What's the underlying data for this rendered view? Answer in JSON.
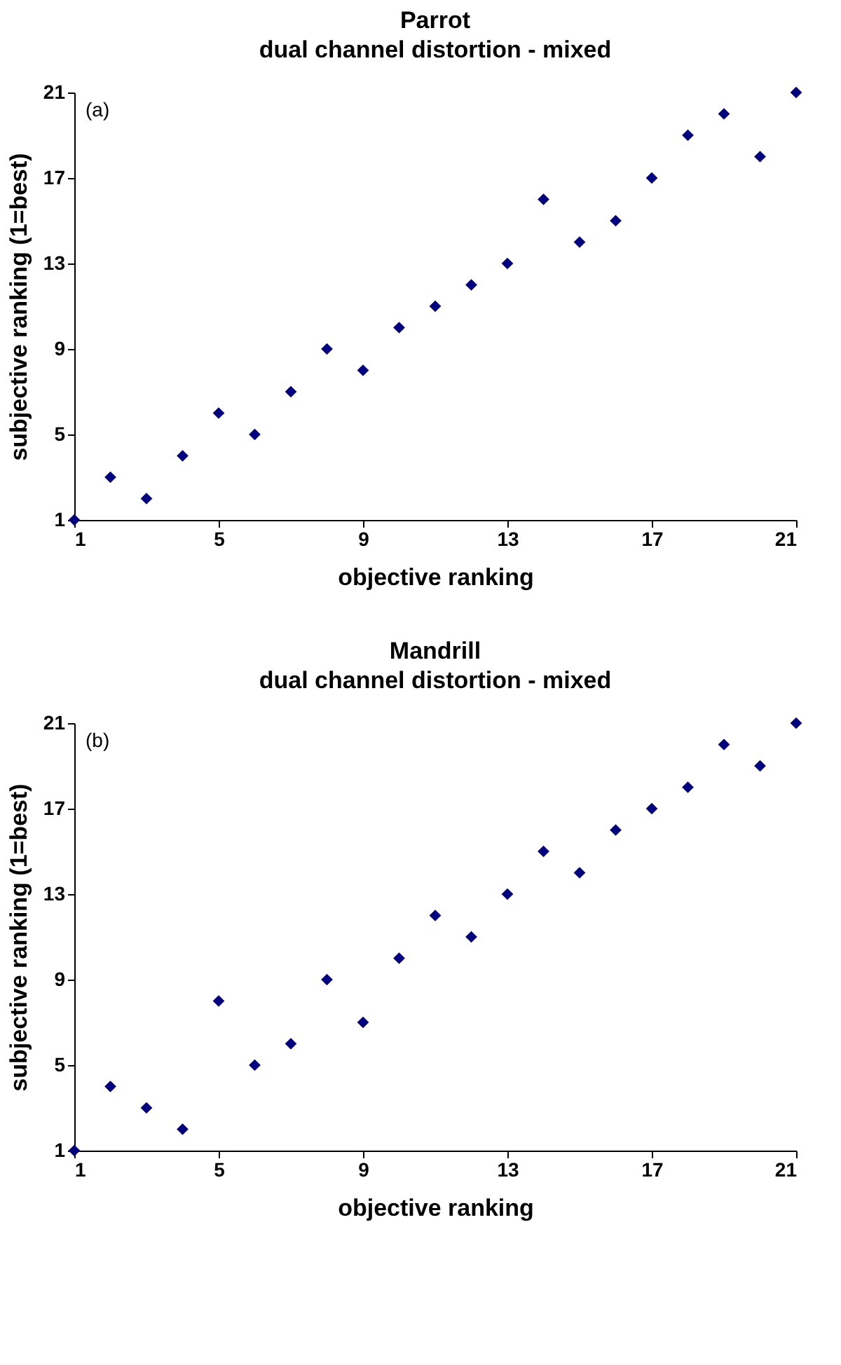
{
  "chart_data": [
    {
      "type": "scatter",
      "title": "Parrot",
      "subtitle": "dual channel distortion - mixed",
      "xlabel": "objective ranking",
      "ylabel": "subjective ranking (1=best)",
      "annotations": [
        "(a)"
      ],
      "marker": "diamond",
      "xlim": [
        1,
        21
      ],
      "ylim": [
        1,
        21
      ],
      "xticks": [
        1,
        5,
        9,
        13,
        17,
        21
      ],
      "yticks": [
        1,
        5,
        9,
        13,
        17,
        21
      ],
      "x": [
        1,
        2,
        3,
        4,
        5,
        6,
        7,
        8,
        9,
        10,
        11,
        12,
        13,
        14,
        15,
        16,
        17,
        18,
        19,
        20,
        21
      ],
      "series": [
        {
          "color": "#000080",
          "values": [
            1,
            3,
            2,
            4,
            6,
            5,
            7,
            9,
            8,
            10,
            11,
            12,
            13,
            16,
            14,
            15,
            17,
            19,
            20,
            18,
            21
          ]
        }
      ]
    },
    {
      "type": "scatter",
      "title": "Mandrill",
      "subtitle": "dual channel distortion - mixed",
      "xlabel": "objective ranking",
      "ylabel": "subjective ranking (1=best)",
      "annotations": [
        "(b)"
      ],
      "marker": "diamond",
      "xlim": [
        1,
        21
      ],
      "ylim": [
        1,
        21
      ],
      "xticks": [
        1,
        5,
        9,
        13,
        17,
        21
      ],
      "yticks": [
        1,
        5,
        9,
        13,
        17,
        21
      ],
      "x": [
        1,
        2,
        3,
        4,
        5,
        6,
        7,
        8,
        9,
        10,
        11,
        12,
        13,
        14,
        15,
        16,
        17,
        18,
        19,
        20,
        21
      ],
      "series": [
        {
          "color": "#000080",
          "values": [
            1,
            4,
            3,
            2,
            8,
            5,
            6,
            9,
            7,
            10,
            12,
            11,
            13,
            15,
            14,
            16,
            17,
            18,
            20,
            19,
            21
          ]
        }
      ]
    }
  ]
}
